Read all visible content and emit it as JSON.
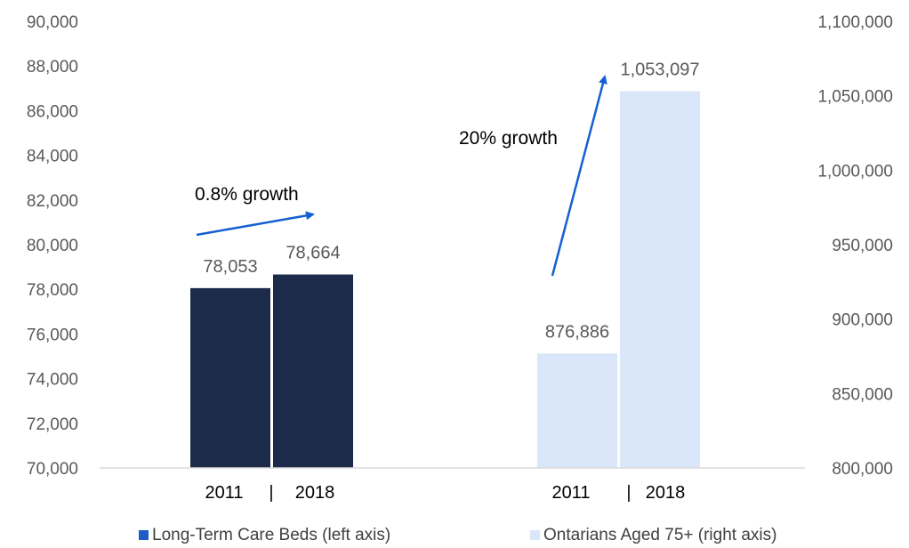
{
  "chart_data": {
    "type": "bar",
    "title": "",
    "categories": [
      "2011",
      "2018"
    ],
    "category_separator": "|",
    "series": [
      {
        "name": "Long-Term Care Beds (left axis)",
        "axis": "left",
        "color": "#1d2b4b",
        "values": [
          78053,
          78664
        ],
        "labels": [
          "78,053",
          "78,664"
        ]
      },
      {
        "name": "Ontarians Aged 75+ (right axis)",
        "axis": "right",
        "color": "#dae6fa",
        "values": [
          876886,
          1053097
        ],
        "labels": [
          "876,886",
          "1,053,097"
        ]
      }
    ],
    "left_axis": {
      "min": 70000,
      "max": 90000,
      "step": 2000,
      "ticks": [
        "70,000",
        "72,000",
        "74,000",
        "76,000",
        "78,000",
        "80,000",
        "82,000",
        "84,000",
        "86,000",
        "88,000",
        "90,000"
      ]
    },
    "right_axis": {
      "min": 800000,
      "max": 1100000,
      "step": 50000,
      "ticks": [
        "800,000",
        "850,000",
        "900,000",
        "950,000",
        "1,000,000",
        "1,050,000",
        "1,100,000"
      ]
    },
    "annotations": [
      {
        "text": "0.8% growth",
        "series": 0
      },
      {
        "text": "20% growth",
        "series": 1
      }
    ],
    "arrow_color": "#1560d0",
    "grid": false,
    "legend_position": "bottom"
  }
}
